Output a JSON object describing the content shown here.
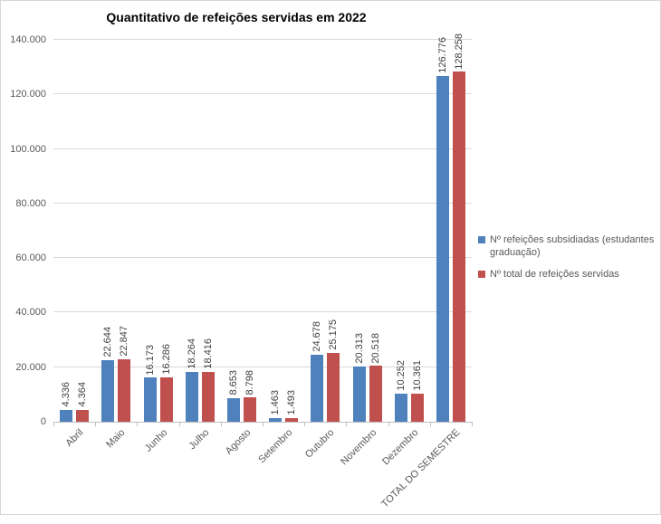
{
  "chart_data": {
    "type": "bar",
    "title": "Quantitativo de refeições servidas em 2022",
    "xlabel": "",
    "ylabel": "",
    "ylim": [
      0,
      140000
    ],
    "y_tick_interval": 20000,
    "grid": true,
    "legend_position": "right",
    "data_label_rotation": "vertical",
    "x_label_rotation": 45,
    "categories": [
      "Abril",
      "Maio",
      "Junho",
      "Julho",
      "Agosto",
      "Setembro",
      "Outubro",
      "Novembro",
      "Dezembro",
      "TOTAL DO SEMESTRE"
    ],
    "y_ticks": [
      {
        "value": 0,
        "label": "0"
      },
      {
        "value": 20000,
        "label": "20.000"
      },
      {
        "value": 40000,
        "label": "40.000"
      },
      {
        "value": 60000,
        "label": "60.000"
      },
      {
        "value": 80000,
        "label": "80.000"
      },
      {
        "value": 100000,
        "label": "100.000"
      },
      {
        "value": 120000,
        "label": "120.000"
      },
      {
        "value": 140000,
        "label": "140.000"
      }
    ],
    "series": [
      {
        "name": "Nº refeições subsidiadas (estudantes graduação)",
        "color": "#4f81bd",
        "values": [
          4336,
          22644,
          16173,
          18264,
          8653,
          1463,
          24678,
          20313,
          10252,
          126776
        ],
        "labels": [
          "4.336",
          "22.644",
          "16.173",
          "18.264",
          "8.653",
          "1.463",
          "24.678",
          "20.313",
          "10.252",
          "126.776"
        ]
      },
      {
        "name": "Nº total de refeições servidas",
        "color": "#c0504d",
        "values": [
          4364,
          22847,
          16286,
          18416,
          8798,
          1493,
          25175,
          20518,
          10361,
          128258
        ],
        "labels": [
          "4.364",
          "22.847",
          "16.286",
          "18.416",
          "8.798",
          "1.493",
          "25.175",
          "20.518",
          "10.361",
          "128.258"
        ]
      }
    ],
    "colors": {
      "gridline": "#d9d9d9",
      "axis_line": "#bfbfbf",
      "data_label_text": "#404040",
      "axis_text": "#595959",
      "title_text": "#000000"
    }
  }
}
